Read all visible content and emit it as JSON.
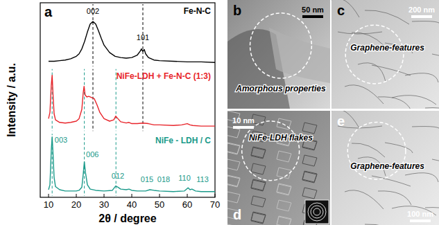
{
  "chart_data": [
    {
      "type": "line",
      "label": "a",
      "xlim": [
        7,
        70
      ],
      "ylim": [
        0,
        100
      ],
      "tick_labels": false,
      "x": [
        10,
        12,
        14,
        16,
        18,
        20,
        21,
        22,
        23,
        24,
        25,
        26,
        27,
        28,
        29,
        30,
        32,
        34,
        36,
        38,
        40,
        42,
        43,
        43.5,
        44,
        44.5,
        45,
        46,
        48,
        50,
        55,
        60,
        65,
        70
      ],
      "series": [
        {
          "name": "Fe-N-C",
          "color": "#000000",
          "values": [
            8,
            8,
            9,
            10,
            12,
            16,
            20,
            28,
            40,
            55,
            68,
            72,
            68,
            57,
            45,
            34,
            22,
            16,
            14,
            13,
            14,
            18,
            24,
            28,
            24,
            27,
            20,
            14,
            10,
            9,
            8,
            7,
            7,
            6
          ]
        }
      ],
      "annotations": [
        {
          "text": "002",
          "x": 26,
          "y": 84
        },
        {
          "text": "101",
          "x": 44,
          "y": 42
        }
      ],
      "vlines": [
        {
          "x": 26,
          "color": "#000000"
        },
        {
          "x": 44,
          "color": "#000000"
        }
      ]
    },
    {
      "type": "line",
      "y_label": "Intensity / a.u.",
      "xlim": [
        7,
        70
      ],
      "ylim": [
        0,
        100
      ],
      "tick_labels": false,
      "x": [
        10,
        10.5,
        11,
        11.3,
        11.6,
        12,
        12.5,
        14,
        16,
        18,
        20,
        21,
        22,
        22.5,
        22.8,
        23.2,
        23.8,
        24.5,
        25.5,
        26.5,
        27.5,
        28.5,
        30,
        32,
        33.5,
        34.2,
        35,
        36,
        38,
        39,
        40,
        42,
        44,
        46,
        48,
        50,
        55,
        58,
        60,
        61,
        62,
        65,
        70
      ],
      "series": [
        {
          "name": "NiFe-LDH + Fe-N-C (1:3)",
          "color": "#e8242a",
          "values": [
            20,
            30,
            75,
            90,
            60,
            28,
            18,
            14,
            13,
            14,
            16,
            20,
            35,
            62,
            72,
            58,
            55,
            56,
            54,
            52,
            42,
            30,
            20,
            16,
            18,
            24,
            20,
            15,
            13,
            14,
            12,
            12,
            13,
            12,
            10,
            10,
            9,
            10,
            12,
            10,
            9,
            8,
            8
          ]
        }
      ],
      "vlines": [
        {
          "x": 26,
          "color": "#000000"
        },
        {
          "x": 44,
          "color": "#000000"
        },
        {
          "x": 11.3,
          "color": "#1a9a8a"
        },
        {
          "x": 22.9,
          "color": "#1a9a8a"
        },
        {
          "x": 34.3,
          "color": "#1a9a8a"
        }
      ]
    },
    {
      "type": "line",
      "x_label": "2θ / degree",
      "xlim": [
        7,
        70
      ],
      "ylim": [
        0,
        100
      ],
      "tick_labels": "x",
      "xticks": [
        10,
        20,
        30,
        40,
        50,
        60,
        70
      ],
      "x": [
        10,
        10.5,
        11,
        11.3,
        11.6,
        12,
        12.5,
        14,
        16,
        18,
        20,
        21,
        22,
        22.5,
        22.9,
        23.3,
        24,
        25,
        27,
        30,
        33,
        34.2,
        35,
        36,
        38,
        39,
        40,
        42,
        45,
        46.5,
        48,
        50,
        55,
        59,
        60.3,
        61,
        61.7,
        63,
        65,
        70
      ],
      "series": [
        {
          "name": "NiFe - LDH / C",
          "color": "#1a9a8a",
          "values": [
            10,
            18,
            75,
            95,
            70,
            30,
            15,
            10,
            8,
            8,
            8,
            9,
            14,
            35,
            55,
            38,
            18,
            11,
            9,
            8,
            9,
            16,
            14,
            11,
            10,
            11,
            9,
            8,
            8,
            10,
            9,
            8,
            7,
            8,
            13,
            10,
            11,
            8,
            7,
            7
          ]
        }
      ],
      "annotations": [
        {
          "text": "003",
          "x": 14.5,
          "y": 86
        },
        {
          "text": "006",
          "x": 25.8,
          "y": 62
        },
        {
          "text": "012",
          "x": 35,
          "y": 28
        },
        {
          "text": "015",
          "x": 45.5,
          "y": 22
        },
        {
          "text": "018",
          "x": 51.5,
          "y": 22
        },
        {
          "text": "110",
          "x": 59,
          "y": 24
        },
        {
          "text": "113",
          "x": 65.5,
          "y": 22
        }
      ],
      "vlines": [
        {
          "x": 11.3,
          "color": "#1a9a8a"
        },
        {
          "x": 22.9,
          "color": "#1a9a8a"
        },
        {
          "x": 34.3,
          "color": "#1a9a8a"
        }
      ]
    }
  ],
  "panels": [
    {
      "label": "b",
      "scale_bar": "50 nm",
      "caption": "Amorphous properties"
    },
    {
      "label": "c",
      "scale_bar": "200 nm",
      "caption": "Graphene-features"
    },
    {
      "label": "d",
      "scale_bar": "10 nm",
      "caption": "NiFe-LDH flakes"
    },
    {
      "label": "e",
      "scale_bar": "100 nm",
      "caption": "Graphene-features"
    }
  ]
}
